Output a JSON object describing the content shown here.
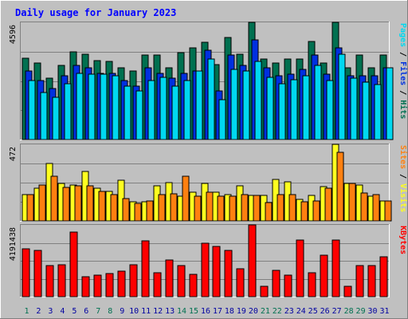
{
  "title": "Daily usage for January 2023",
  "colors": {
    "background": "#c0c0c0",
    "panel": "#c0c0c0",
    "title_text": "#0000ff",
    "hits": "#007050",
    "files": "#0030e0",
    "pages": "#00d8f0",
    "visits": "#ffff20",
    "sites": "#ff8010",
    "kbytes": "#ff0000",
    "weekend_label": "#007050",
    "weekday_label": "#0000a0"
  },
  "chart_data": [
    {
      "type": "bar",
      "panel": "top",
      "ymax_label": "4596",
      "ylim": [
        0,
        4596
      ],
      "legend": [
        {
          "name": "Hits",
          "color": "#007050"
        },
        {
          "name": "Files",
          "color": "#0030e0"
        },
        {
          "name": "Pages",
          "color": "#00d8f0"
        }
      ],
      "series": [
        {
          "name": "Hits",
          "values": [
            3200,
            3000,
            2400,
            2900,
            3450,
            3350,
            3100,
            3050,
            2800,
            2700,
            3300,
            3300,
            2800,
            3400,
            3600,
            3800,
            2950,
            4000,
            3350,
            4596,
            3150,
            3000,
            3150,
            3150,
            3850,
            3000,
            4596,
            2800,
            3300,
            2800,
            3300
          ]
        },
        {
          "name": "Files",
          "values": [
            2700,
            2300,
            2000,
            2500,
            2900,
            2800,
            2600,
            2600,
            2300,
            2100,
            2800,
            2600,
            2400,
            2600,
            2700,
            3500,
            1900,
            3300,
            2900,
            3900,
            2800,
            2500,
            2550,
            2750,
            3300,
            2550,
            3600,
            2500,
            2500,
            2500,
            2800
          ]
        },
        {
          "name": "Pages",
          "values": [
            2300,
            1850,
            1650,
            2200,
            2600,
            2550,
            2550,
            2500,
            2100,
            1900,
            2300,
            2450,
            2100,
            2300,
            2700,
            3150,
            1550,
            2750,
            2700,
            3050,
            2450,
            2200,
            2350,
            2500,
            2900,
            2300,
            3350,
            2400,
            2250,
            2150,
            2800
          ]
        }
      ]
    },
    {
      "type": "bar",
      "panel": "middle",
      "ymax_label": "472",
      "ylim": [
        0,
        472
      ],
      "legend": [
        {
          "name": "Visits",
          "color": "#ffff20"
        },
        {
          "name": "Sites",
          "color": "#ff8010"
        }
      ],
      "series": [
        {
          "name": "Visits",
          "values": [
            160,
            200,
            355,
            230,
            220,
            305,
            200,
            180,
            250,
            120,
            120,
            215,
            235,
            150,
            175,
            230,
            175,
            160,
            215,
            155,
            155,
            255,
            240,
            135,
            155,
            210,
            472,
            230,
            220,
            150,
            125
          ]
        },
        {
          "name": "Sites",
          "values": [
            160,
            220,
            275,
            205,
            215,
            215,
            180,
            160,
            140,
            110,
            125,
            160,
            165,
            275,
            150,
            175,
            150,
            150,
            160,
            155,
            115,
            160,
            160,
            120,
            125,
            200,
            425,
            230,
            170,
            160,
            125
          ]
        }
      ]
    },
    {
      "type": "bar",
      "panel": "bottom",
      "ymax_label": "4191438",
      "ylim": [
        0,
        4191438
      ],
      "legend": [
        {
          "name": "KBytes",
          "color": "#ff0000"
        }
      ],
      "series": [
        {
          "name": "KBytes",
          "values": [
            2800000,
            2700000,
            1800000,
            1850000,
            3750000,
            1150000,
            1250000,
            1350000,
            1500000,
            1850000,
            3250000,
            1400000,
            2150000,
            1800000,
            1300000,
            3100000,
            2950000,
            2700000,
            1650000,
            4191438,
            600000,
            1550000,
            1250000,
            3300000,
            1400000,
            2400000,
            3300000,
            600000,
            1800000,
            1800000,
            2350000
          ]
        }
      ]
    }
  ],
  "days": [
    "1",
    "2",
    "3",
    "4",
    "5",
    "6",
    "7",
    "8",
    "9",
    "10",
    "11",
    "12",
    "13",
    "14",
    "15",
    "16",
    "17",
    "18",
    "19",
    "20",
    "21",
    "22",
    "23",
    "24",
    "25",
    "26",
    "27",
    "28",
    "29",
    "30",
    "31"
  ],
  "weekend_days": [
    "1",
    "7",
    "8",
    "14",
    "15",
    "21",
    "22",
    "28",
    "29"
  ]
}
